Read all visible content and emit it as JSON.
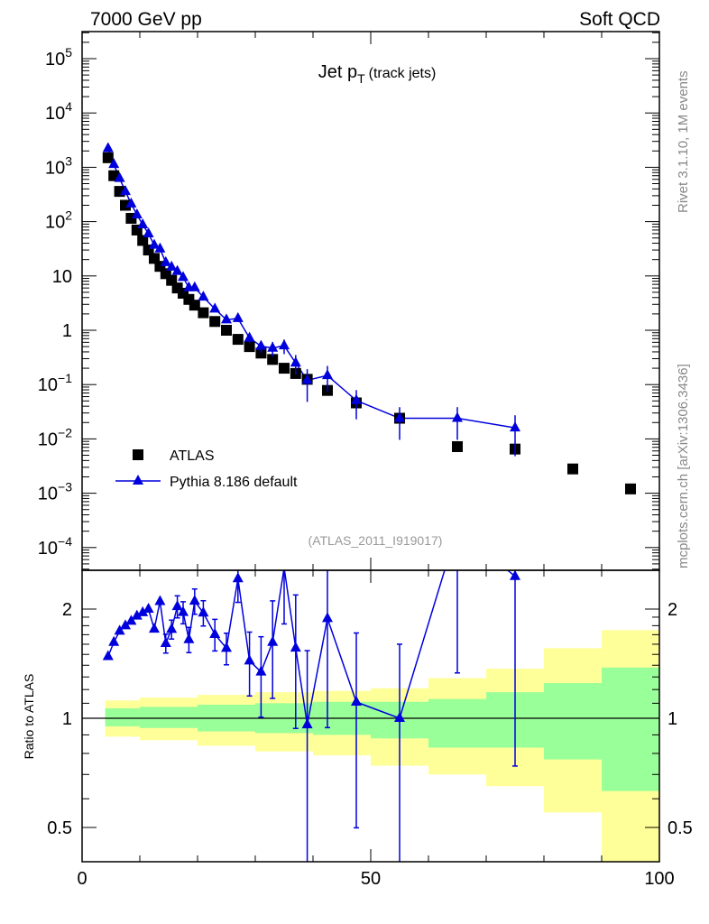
{
  "header": {
    "left": "7000 GeV pp",
    "right": "Soft QCD"
  },
  "side": {
    "rivet": "Rivet 3.1.10,  1M events",
    "mcplots": "mcplots.cern.ch [arXiv:1306.3436]"
  },
  "analysis_id": "(ATLAS_2011_I919017)",
  "colors": {
    "data": "#000000",
    "mc": "#0000dd",
    "band_outer": "#ffff99",
    "band_inner": "#99ff99"
  },
  "chart_data": {
    "type": "scatter",
    "title": {
      "main": "Jet p",
      "sub": "T",
      "suffix": "(track jets)"
    },
    "xlim": [
      0,
      100
    ],
    "ylim_main": [
      3e-05,
      300000.0
    ],
    "ylim_ratio": [
      0.34,
      2.35
    ],
    "ratio_ylabel": "Ratio to ATLAS",
    "x_ticks": [
      {
        "v": 0,
        "label": "0"
      },
      {
        "v": 50,
        "label": "50"
      },
      {
        "v": 100,
        "label": "100"
      }
    ],
    "y_ticks_main": [
      {
        "v": 100000.0,
        "b": "10",
        "e": "5"
      },
      {
        "v": 10000.0,
        "b": "10",
        "e": "4"
      },
      {
        "v": 1000.0,
        "b": "10",
        "e": "3"
      },
      {
        "v": 100,
        "b": "10",
        "e": "2"
      },
      {
        "v": 10,
        "b": "10",
        "e": ""
      },
      {
        "v": 1,
        "b": "1",
        "e": ""
      },
      {
        "v": 0.1,
        "b": "10",
        "e": "−1"
      },
      {
        "v": 0.01,
        "b": "10",
        "e": "−2"
      },
      {
        "v": 0.001,
        "b": "10",
        "e": "−3"
      },
      {
        "v": 0.0001,
        "b": "10",
        "e": "−4"
      }
    ],
    "y_ticks_ratio": [
      {
        "v": 2,
        "label": "2"
      },
      {
        "v": 1,
        "label": "1"
      },
      {
        "v": 0.5,
        "label": "0.5"
      }
    ],
    "legend": {
      "position": "lower-left",
      "entries": [
        "ATLAS",
        "Pythia 8.186 default"
      ]
    },
    "x": [
      4.5,
      5.5,
      6.5,
      7.5,
      8.5,
      9.5,
      10.5,
      11.5,
      12.5,
      13.5,
      14.5,
      15.5,
      16.5,
      17.5,
      18.5,
      19.5,
      21,
      23,
      25,
      27,
      29,
      31,
      33,
      35,
      37,
      39,
      42.5,
      47.5,
      55,
      65,
      75,
      85,
      95
    ],
    "series": [
      {
        "name": "ATLAS",
        "values": [
          1500,
          700,
          360,
          200,
          115,
          70,
          45,
          30,
          21,
          15,
          11,
          8.3,
          6,
          4.8,
          3.7,
          2.9,
          2.1,
          1.45,
          1.0,
          0.68,
          0.5,
          0.38,
          0.29,
          0.2,
          0.16,
          0.125,
          0.078,
          0.046,
          0.024,
          0.0072,
          0.0065,
          0.0028,
          0.0012
        ]
      },
      {
        "name": "Pythia 8.186 default",
        "values": [
          2220,
          1134,
          626,
          360,
          213,
          134,
          88,
          60,
          37,
          31.5,
          17.7,
          14.6,
          12.2,
          9.4,
          6.1,
          6.1,
          4.1,
          2.47,
          1.56,
          1.65,
          0.72,
          0.51,
          0.47,
          0.52,
          0.25,
          0.12,
          0.147,
          0.051,
          0.024,
          0.024,
          0.016,
          null,
          null
        ],
        "rel_err": [
          0.01,
          0.01,
          0.01,
          0.01,
          0.01,
          0.01,
          0.02,
          0.02,
          0.04,
          0.05,
          0.06,
          0.06,
          0.07,
          0.07,
          0.08,
          0.08,
          0.08,
          0.1,
          0.1,
          0.14,
          0.2,
          0.25,
          0.3,
          0.3,
          0.4,
          0.6,
          0.5,
          0.55,
          0.6,
          0.6,
          0.7,
          null,
          null
        ]
      }
    ],
    "bands": [
      {
        "x": [
          4,
          10
        ],
        "outer": [
          0.89,
          1.12
        ],
        "inner": [
          0.95,
          1.065
        ]
      },
      {
        "x": [
          10,
          20
        ],
        "outer": [
          0.87,
          1.14
        ],
        "inner": [
          0.94,
          1.075
        ]
      },
      {
        "x": [
          20,
          30
        ],
        "outer": [
          0.84,
          1.16
        ],
        "inner": [
          0.92,
          1.09
        ]
      },
      {
        "x": [
          30,
          40
        ],
        "outer": [
          0.81,
          1.18
        ],
        "inner": [
          0.91,
          1.1
        ]
      },
      {
        "x": [
          40,
          50
        ],
        "outer": [
          0.79,
          1.19
        ],
        "inner": [
          0.9,
          1.11
        ]
      },
      {
        "x": [
          50,
          60
        ],
        "outer": [
          0.74,
          1.21
        ],
        "inner": [
          0.88,
          1.11
        ]
      },
      {
        "x": [
          60,
          70
        ],
        "outer": [
          0.7,
          1.29
        ],
        "inner": [
          0.83,
          1.13
        ]
      },
      {
        "x": [
          70,
          80
        ],
        "outer": [
          0.65,
          1.37
        ],
        "inner": [
          0.83,
          1.18
        ]
      },
      {
        "x": [
          80,
          90
        ],
        "outer": [
          0.55,
          1.56
        ],
        "inner": [
          0.77,
          1.25
        ]
      },
      {
        "x": [
          90,
          100
        ],
        "outer": [
          0.3,
          1.75
        ],
        "inner": [
          0.63,
          1.38
        ]
      }
    ]
  }
}
